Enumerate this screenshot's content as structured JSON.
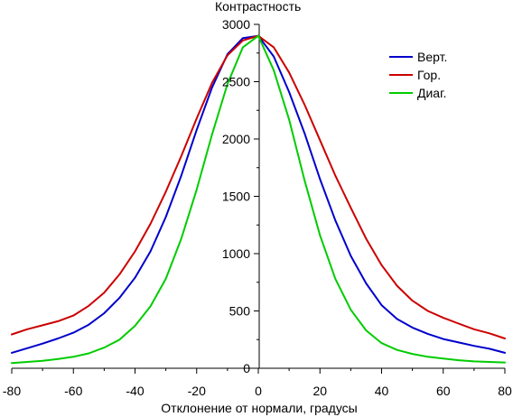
{
  "chart_data": {
    "type": "line",
    "title": "",
    "xlabel": "Отклонение от нормали, градусы",
    "ylabel": "Контрастность",
    "xlim": [
      -80,
      80
    ],
    "ylim": [
      0,
      3000
    ],
    "x_ticks": [
      -80,
      -60,
      -40,
      -20,
      0,
      20,
      40,
      60,
      80
    ],
    "x_tick_labels": [
      "-80",
      "-60",
      "-40",
      "-20",
      "0",
      "20",
      "40",
      "60",
      "80"
    ],
    "y_ticks": [
      0,
      500,
      1000,
      1500,
      2000,
      2500,
      3000
    ],
    "y_tick_labels": [
      "0",
      "500",
      "1000",
      "1500",
      "2000",
      "2500",
      "3000"
    ],
    "grid": false,
    "legend_position": "top-right",
    "x": [
      -80,
      -75,
      -70,
      -65,
      -60,
      -55,
      -50,
      -45,
      -40,
      -35,
      -30,
      -25,
      -20,
      -15,
      -10,
      -5,
      0,
      5,
      10,
      15,
      20,
      25,
      30,
      35,
      40,
      45,
      50,
      55,
      60,
      65,
      70,
      75,
      80
    ],
    "series": [
      {
        "name": "Верт.",
        "color": "#0000cc",
        "values": [
          135,
          175,
          215,
          260,
          310,
          380,
          480,
          615,
          790,
          1020,
          1320,
          1680,
          2080,
          2450,
          2740,
          2880,
          2900,
          2720,
          2410,
          2050,
          1650,
          1290,
          980,
          740,
          550,
          430,
          355,
          300,
          255,
          225,
          195,
          170,
          135
        ]
      },
      {
        "name": "Гор.",
        "color": "#cc0000",
        "values": [
          295,
          340,
          375,
          410,
          460,
          545,
          660,
          820,
          1020,
          1260,
          1540,
          1850,
          2180,
          2490,
          2730,
          2860,
          2900,
          2800,
          2580,
          2300,
          1990,
          1680,
          1400,
          1130,
          900,
          720,
          590,
          500,
          440,
          390,
          340,
          305,
          260
        ]
      },
      {
        "name": "Диаг.",
        "color": "#00cc00",
        "values": [
          45,
          55,
          65,
          80,
          100,
          130,
          180,
          250,
          370,
          540,
          780,
          1130,
          1560,
          2040,
          2480,
          2800,
          2900,
          2600,
          2170,
          1640,
          1160,
          780,
          510,
          330,
          220,
          160,
          125,
          100,
          85,
          70,
          60,
          55,
          50
        ]
      }
    ]
  }
}
